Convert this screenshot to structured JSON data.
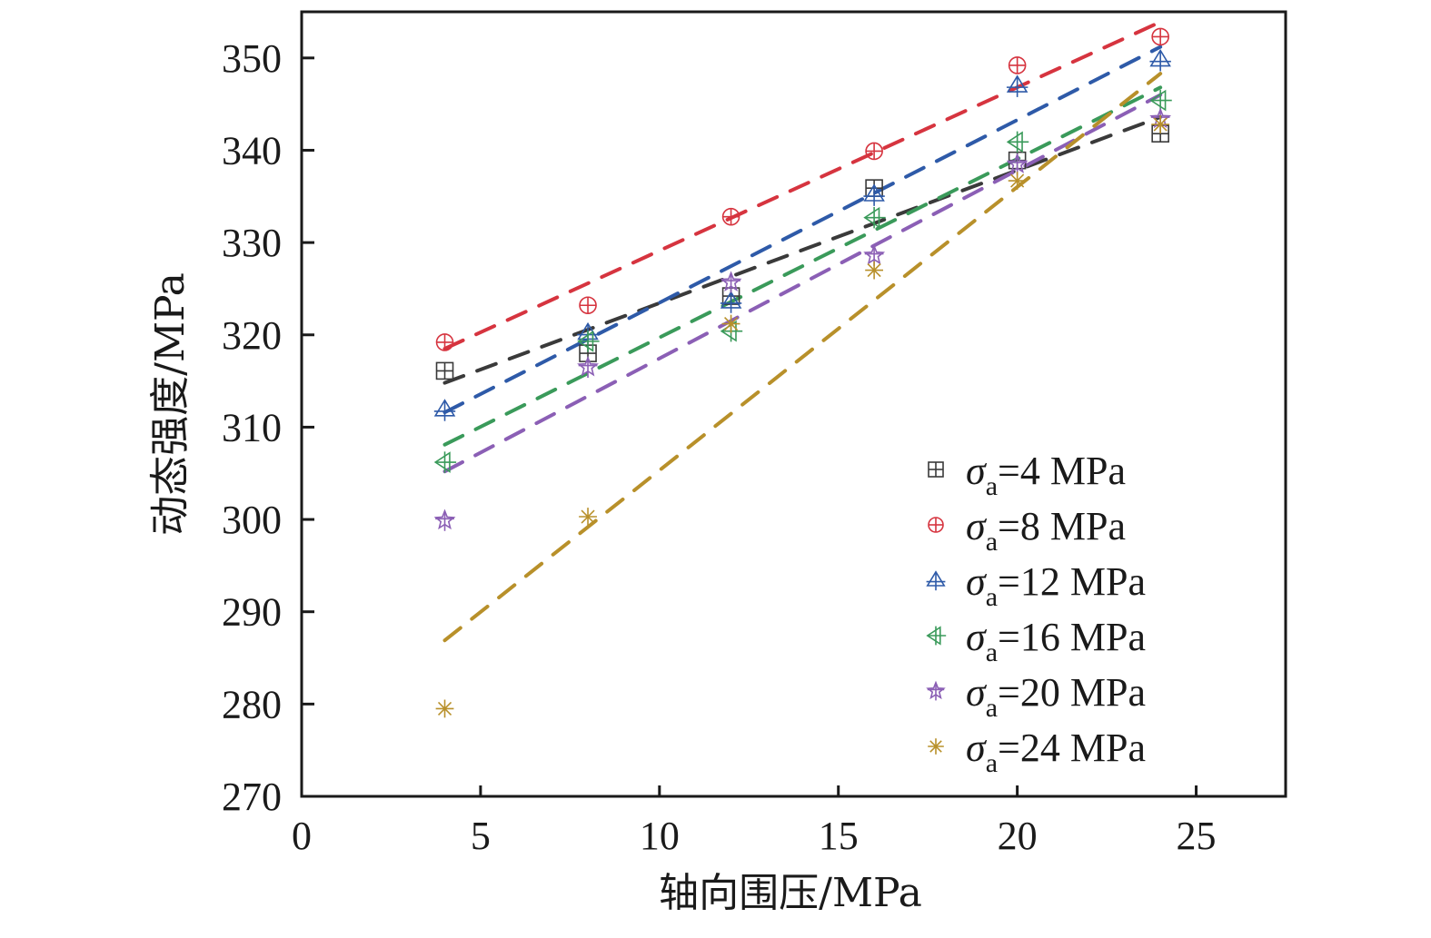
{
  "chart_data": {
    "type": "scatter",
    "title": "",
    "xlabel": "轴向围压/MPa",
    "ylabel": "动态强度/MPa",
    "xlim": [
      0,
      27.5
    ],
    "ylim": [
      270,
      355
    ],
    "xticks": [
      0,
      5,
      10,
      15,
      20,
      25
    ],
    "yticks": [
      270,
      280,
      290,
      300,
      310,
      320,
      330,
      340,
      350
    ],
    "grid": false,
    "legend_position": "bottom-right",
    "x": [
      4,
      8,
      12,
      16,
      20,
      24
    ],
    "series": [
      {
        "name": "σa=4 MPa",
        "label_prefix": "σ",
        "label_sub": "a",
        "label_suffix": "=4 MPa",
        "marker": "square-plus",
        "color": "#3a3a3a",
        "values": [
          316.1,
          318.0,
          324.2,
          335.9,
          338.9,
          341.8
        ],
        "fit": [
          314.8,
          343.6
        ]
      },
      {
        "name": "σa=8 MPa",
        "label_prefix": "σ",
        "label_sub": "a",
        "label_suffix": "=8 MPa",
        "marker": "circle-plus",
        "color": "#d6343f",
        "values": [
          319.2,
          323.2,
          332.8,
          339.9,
          349.2,
          352.3
        ],
        "fit": [
          318.5,
          353.9
        ]
      },
      {
        "name": "σa=12 MPa",
        "label_prefix": "σ",
        "label_sub": "a",
        "label_suffix": "=12 MPa",
        "marker": "triangle-plus",
        "color": "#2e5aa8",
        "values": [
          311.9,
          320.2,
          323.6,
          335.2,
          347.0,
          349.8
        ],
        "fit": [
          311.6,
          351.2
        ]
      },
      {
        "name": "σa=16 MPa",
        "label_prefix": "σ",
        "label_sub": "a",
        "label_suffix": "=16 MPa",
        "marker": "left-triangle-plus",
        "color": "#3a9a5a",
        "values": [
          306.2,
          319.3,
          320.4,
          332.7,
          340.9,
          345.4
        ],
        "fit": [
          308.1,
          346.8
        ]
      },
      {
        "name": "σa=20 MPa",
        "label_prefix": "σ",
        "label_sub": "a",
        "label_suffix": "=20 MPa",
        "marker": "star-plus",
        "color": "#8b5fb5",
        "values": [
          299.9,
          316.5,
          325.7,
          328.6,
          338.5,
          343.4
        ],
        "fit": [
          305.2,
          346.0
        ]
      },
      {
        "name": "σa=24 MPa",
        "label_prefix": "σ",
        "label_sub": "a",
        "label_suffix": "=24 MPa",
        "marker": "asterisk",
        "color": "#b8902a",
        "values": [
          279.5,
          300.3,
          321.2,
          327.0,
          336.7,
          342.8
        ],
        "fit": [
          286.9,
          348.3
        ]
      }
    ],
    "fit_range": [
      4,
      24
    ]
  }
}
